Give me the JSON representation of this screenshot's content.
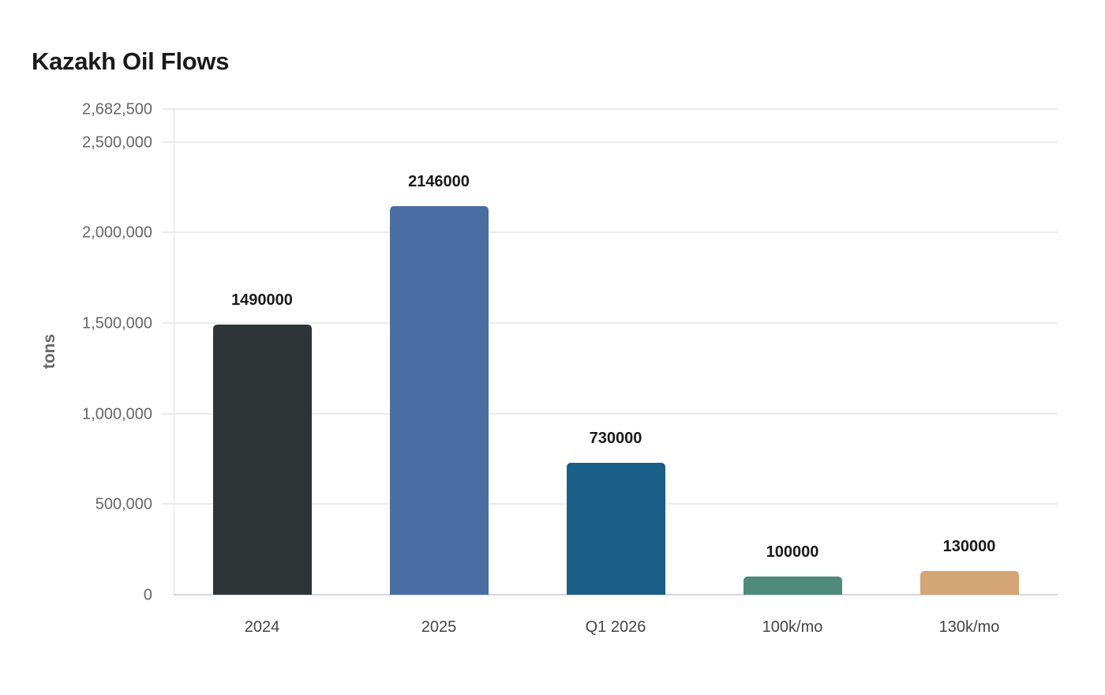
{
  "chart_data": {
    "type": "bar",
    "title": "Kazakh Oil Flows",
    "xlabel": "",
    "ylabel": "tons",
    "categories": [
      "2024",
      "2025",
      "Q1 2026",
      "100k/mo",
      "130k/mo"
    ],
    "values": [
      1490000,
      2146000,
      730000,
      100000,
      130000
    ],
    "data_labels": [
      "1490000",
      "2146000",
      "730000",
      "100000",
      "130000"
    ],
    "colors": [
      "#2e3537",
      "#4a6ea3",
      "#1a5f87",
      "#4e8b7a",
      "#d4a574"
    ],
    "ylim": [
      0,
      2682500
    ],
    "yticks": [
      0,
      500000,
      1000000,
      1500000,
      2000000,
      2500000,
      2682500
    ],
    "ytick_labels": [
      "0",
      "500,000",
      "1,000,000",
      "1,500,000",
      "2,000,000",
      "2,500,000",
      "2,682,500"
    ],
    "grid": true,
    "legend": null
  },
  "title": "Kazakh Oil Flows",
  "yaxis_label": "tons"
}
